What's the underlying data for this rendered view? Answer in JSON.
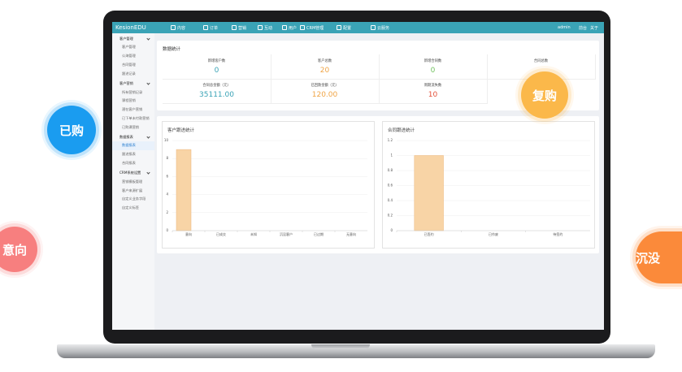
{
  "nav": {
    "brand": "KesionEDU",
    "items": [
      "内容",
      "订单",
      "营销",
      "互动",
      "用户",
      "CRM管理",
      "配置",
      "云服务"
    ],
    "right": [
      "admin",
      "前台",
      "关于"
    ]
  },
  "sidebar": [
    {
      "title": "客户管理",
      "items": [
        "客户管理",
        "公海管理",
        "合同管理",
        "跟进记录"
      ]
    },
    {
      "title": "客户营销",
      "items": [
        "所有营销记录",
        "课程营销",
        "潜在客户营销",
        "已下单未付款营销",
        "已购课营销"
      ]
    },
    {
      "title": "数据报表",
      "items": [
        "数据报表",
        "跟进报表",
        "合同报表"
      ]
    },
    {
      "title": "CRM系统设置",
      "items": [
        "营销模板管理",
        "客户来源扩展",
        "自定义业务字段",
        "自定义标签"
      ]
    }
  ],
  "stats": {
    "title": "数据统计",
    "cells": [
      {
        "label": "新增客户数",
        "value": "0",
        "color": "#3aa3b6"
      },
      {
        "label": "客户总数",
        "value": "20",
        "color": "#f0a445"
      },
      {
        "label": "新增合同数",
        "value": "0",
        "color": "#72c25f"
      },
      {
        "label": "合同总数"
      },
      {
        "label": "合同总金额（元）",
        "value": "35111.00",
        "color": "#3aa3b6"
      },
      {
        "label": "已回款金额（元）",
        "value": "120.00",
        "color": "#f0a445"
      },
      {
        "label": "周期流失数",
        "value": "10",
        "color": "#e4513a"
      }
    ]
  },
  "chart_data": [
    {
      "type": "bar",
      "title": "客户跟进统计",
      "categories": [
        "意向",
        "已成交",
        "未知",
        "沉没客户",
        "已过期",
        "无意向"
      ],
      "values": [
        9,
        0,
        0,
        0,
        0,
        0
      ],
      "color": "#f8d4a6",
      "ylim": [
        0,
        10
      ],
      "yticks": [
        0,
        2,
        4,
        6,
        8,
        10
      ],
      "grid": true
    },
    {
      "type": "bar",
      "title": "合同跟进统计",
      "categories": [
        "已签约",
        "已作废",
        "待签约"
      ],
      "values": [
        1,
        0,
        0
      ],
      "color": "#f8d4a6",
      "ylim": [
        0,
        1.2
      ],
      "yticks": [
        0,
        0.2,
        0.4,
        0.6,
        0.8,
        1,
        1.2
      ],
      "grid": true
    }
  ],
  "bubbles": [
    {
      "label": "已购",
      "color": "#1a9cf0"
    },
    {
      "label": "复购",
      "color": "#fbb84a"
    },
    {
      "label": "意向",
      "color": "#f77f7f"
    },
    {
      "label": "沉没",
      "color": "#fb8a3a"
    }
  ]
}
